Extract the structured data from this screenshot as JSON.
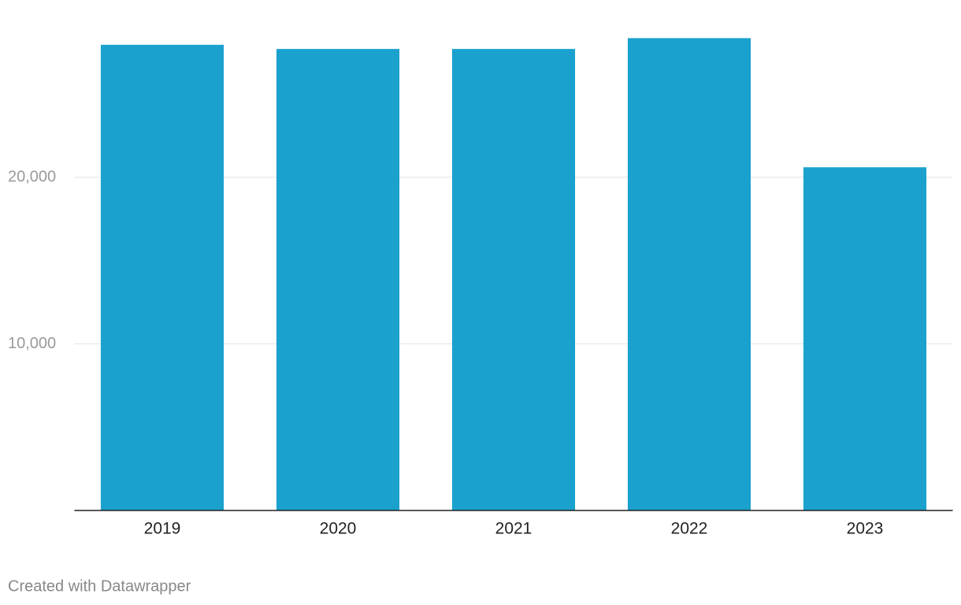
{
  "chart_data": {
    "type": "bar",
    "categories": [
      "2019",
      "2020",
      "2021",
      "2022",
      "2023"
    ],
    "values": [
      27950,
      27700,
      27700,
      28350,
      20600
    ],
    "color": "#1aa1ce",
    "ylim": [
      0,
      30000
    ],
    "yticks": [
      {
        "value": 10000,
        "label": "10,000"
      },
      {
        "value": 20000,
        "label": "20,000"
      }
    ],
    "grid": true,
    "credit": "Created with Datawrapper"
  }
}
